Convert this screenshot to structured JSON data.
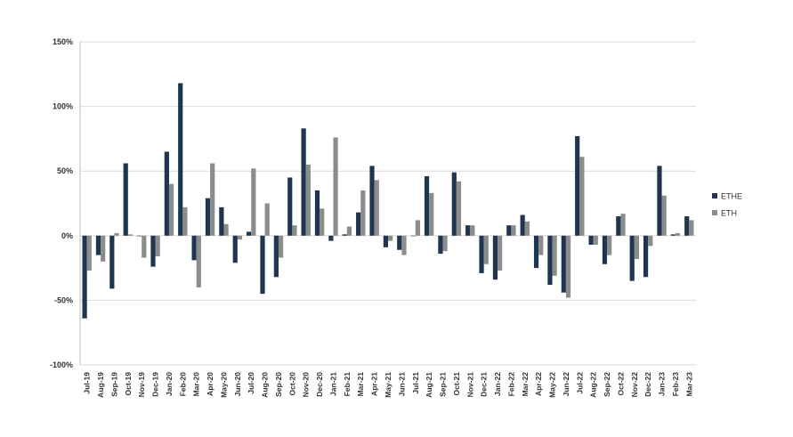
{
  "chart_data": {
    "type": "bar",
    "categories": [
      "Jul-19",
      "Aug-19",
      "Sep-19",
      "Oct-19",
      "Nov-19",
      "Dec-19",
      "Jan-20",
      "Feb-20",
      "Mar-20",
      "Apr-20",
      "May-20",
      "Jun-20",
      "Jul-20",
      "Aug-20",
      "Sep-20",
      "Oct-20",
      "Nov-20",
      "Dec-20",
      "Jan-21",
      "Feb-21",
      "Mar-21",
      "Apr-21",
      "May-21",
      "Jun-21",
      "Jul-21",
      "Aug-21",
      "Sep-21",
      "Oct-21",
      "Nov-21",
      "Dec-21",
      "Jan-22",
      "Feb-22",
      "Mar-22",
      "Apr-22",
      "May-22",
      "Jun-22",
      "Jul-22",
      "Aug-22",
      "Sep-22",
      "Oct-22",
      "Nov-22",
      "Dec-22",
      "Jan-23",
      "Feb-23",
      "Mar-23"
    ],
    "series": [
      {
        "name": "ETHE",
        "color": "#1f3550",
        "values": [
          -64,
          -15,
          -41,
          56,
          0,
          -24,
          65,
          118,
          -19,
          29,
          22,
          -21,
          3,
          -45,
          -32,
          45,
          83,
          35,
          -4,
          1,
          18,
          54,
          -9,
          -11,
          0,
          46,
          -14,
          49,
          8,
          -29,
          -34,
          8,
          16,
          -25,
          -38,
          -44,
          77,
          -7,
          -22,
          15,
          -35,
          -32,
          54,
          1,
          15
        ]
      },
      {
        "name": "ETH",
        "color": "#8c8c8c",
        "values": [
          -27,
          -20,
          2,
          1,
          -17,
          -16,
          40,
          22,
          -40,
          56,
          9,
          -3,
          52,
          25,
          -17,
          8,
          55,
          21,
          76,
          7,
          35,
          43,
          -4,
          -15,
          12,
          33,
          -12,
          42,
          8,
          -22,
          -27,
          8,
          11,
          -15,
          -31,
          -48,
          61,
          -7,
          -15,
          17,
          -18,
          -8,
          31,
          2,
          12
        ]
      }
    ],
    "yticks": [
      "150%",
      "100%",
      "50%",
      "0%",
      "-50%",
      "-100%"
    ],
    "ylim": [
      -100,
      150
    ],
    "grid": true,
    "legend": "right"
  }
}
